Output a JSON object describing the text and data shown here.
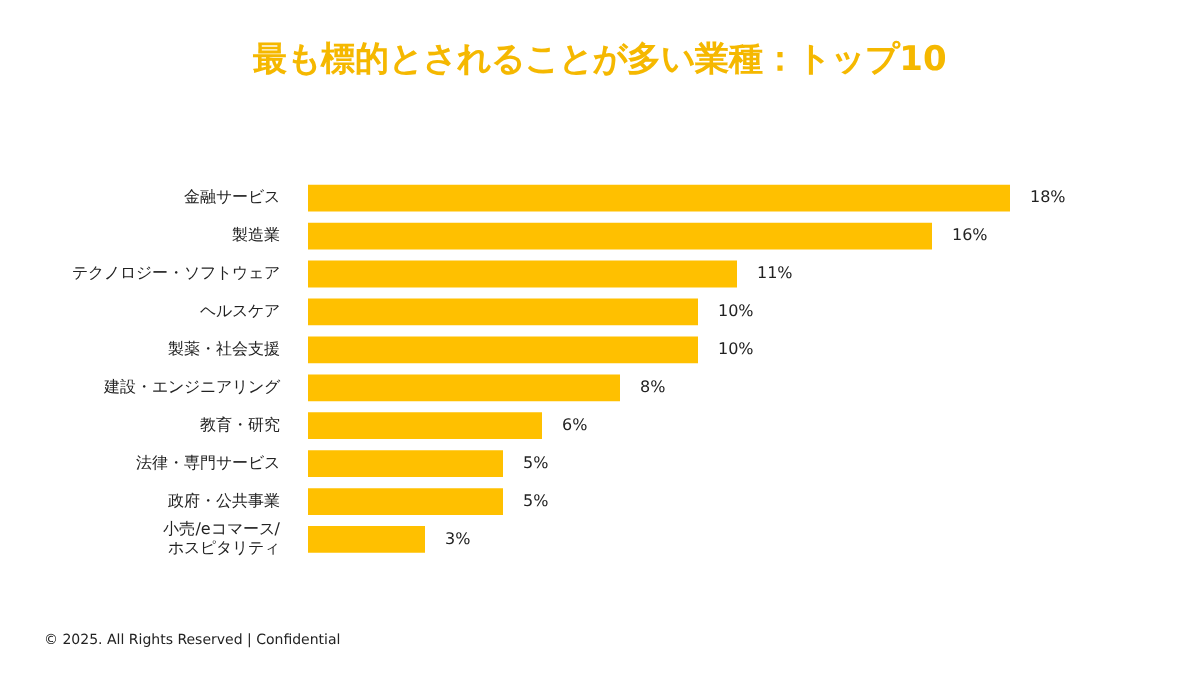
{
  "chart_data": {
    "type": "bar",
    "orientation": "horizontal",
    "title": "最も標的とされることが多い業種：トップ10",
    "categories": [
      "金融サービス",
      "製造業",
      "テクノロジー・ソフトウェア",
      "ヘルスケア",
      "製薬・社会支援",
      "建設・エンジニアリング",
      "教育・研究",
      "法律・専門サービス",
      "政府・公共事業",
      "小売/eコマース/\nホスピタリティ"
    ],
    "values": [
      18,
      16,
      11,
      10,
      10,
      8,
      6,
      5,
      5,
      3
    ],
    "value_labels": [
      "18%",
      "16%",
      "11%",
      "10%",
      "10%",
      "8%",
      "6%",
      "5%",
      "5%",
      "3%"
    ],
    "color": "#ffc000",
    "annotations": [
      "© 2025. All Rights Reserved | Confidential"
    ]
  }
}
